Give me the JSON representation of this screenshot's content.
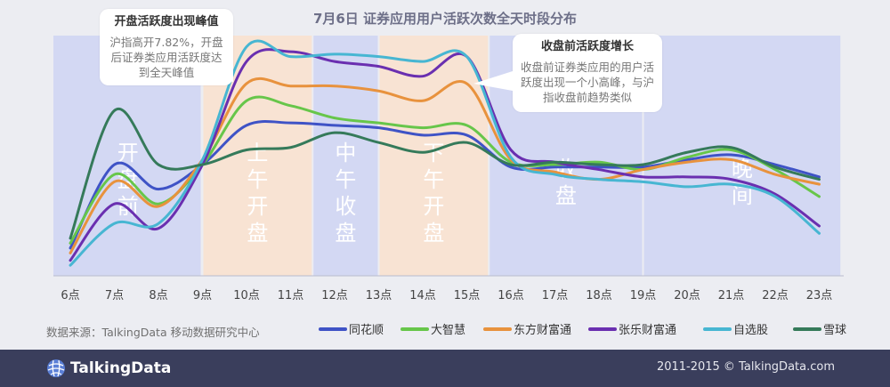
{
  "chart_data": {
    "type": "line",
    "title": "7月6日 证券应用用户活跃次数全天时段分布",
    "categories": [
      "6点",
      "7点",
      "8点",
      "9点",
      "10点",
      "11点",
      "12点",
      "13点",
      "14点",
      "15点",
      "16点",
      "17点",
      "18点",
      "19点",
      "20点",
      "21点",
      "22点",
      "23点"
    ],
    "ylim": [
      0,
      100
    ],
    "grid": false,
    "legend_position": "bottom",
    "series": [
      {
        "name": "同花顺",
        "color": "#3f53c6",
        "values": [
          12,
          46,
          36,
          46,
          62,
          63,
          62,
          61,
          58,
          58,
          45,
          45,
          45,
          45,
          48,
          50,
          46,
          41
        ]
      },
      {
        "name": "大智慧",
        "color": "#67c64a",
        "values": [
          14,
          42,
          30,
          46,
          72,
          70,
          65,
          63,
          61,
          62,
          47,
          46,
          47,
          44,
          49,
          52,
          44,
          33
        ]
      },
      {
        "name": "东方财富通",
        "color": "#e8923d",
        "values": [
          10,
          39,
          29,
          48,
          79,
          78,
          78,
          76,
          72,
          79,
          48,
          43,
          40,
          44,
          47,
          48,
          42,
          38
        ]
      },
      {
        "name": "张乐财富通",
        "color": "#6a2fb0",
        "values": [
          7,
          30,
          20,
          46,
          88,
          92,
          88,
          86,
          82,
          90,
          52,
          47,
          44,
          41,
          41,
          40,
          34,
          21
        ]
      },
      {
        "name": "自选股",
        "color": "#47b6d2",
        "values": [
          5,
          22,
          22,
          48,
          94,
          90,
          91,
          90,
          88,
          90,
          49,
          42,
          40,
          39,
          37,
          38,
          33,
          18
        ]
      },
      {
        "name": "雪球",
        "color": "#357a5a",
        "values": [
          16,
          68,
          46,
          46,
          52,
          53,
          59,
          55,
          51,
          55,
          46,
          47,
          46,
          46,
          51,
          53,
          45,
          40
        ]
      }
    ],
    "periods": [
      {
        "label": "开盘前",
        "type": "blue",
        "from": "6点",
        "to": "9点",
        "chars": [
          "开",
          "盘",
          "前"
        ]
      },
      {
        "label": "上午开盘",
        "type": "orange",
        "from": "9点",
        "to": "11.5",
        "chars": [
          "上",
          "午",
          "开",
          "盘"
        ]
      },
      {
        "label": "中午收盘",
        "type": "blue",
        "from": "11.5",
        "to": "13点",
        "chars": [
          "中",
          "午",
          "收",
          "盘"
        ]
      },
      {
        "label": "下午开盘",
        "type": "orange",
        "from": "13点",
        "to": "15.5",
        "chars": [
          "下",
          "午",
          "开",
          "盘"
        ]
      },
      {
        "label": "收盘",
        "type": "blue",
        "from": "15.5",
        "to": "19点",
        "chars": [
          "收",
          "盘"
        ]
      },
      {
        "label": "晚间",
        "type": "blue",
        "from": "19点",
        "to": "23.5",
        "chars": [
          "晚",
          "间"
        ]
      }
    ]
  },
  "callouts": {
    "left": {
      "title": "开盘活跃度出现峰值",
      "body": "沪指高开7.82%，开盘后证券类应用活跃度达到全天峰值"
    },
    "right": {
      "title": "收盘前活跃度增长",
      "body": "收盘前证券类应用的用户活跃度出现一个小高峰，与沪指收盘前趋势类似"
    }
  },
  "source": "数据来源：TalkingData 移动数据研究中心",
  "footer": {
    "logo_text": "TalkingData",
    "copyright": "2011-2015 © TalkingData.com"
  },
  "colors": {
    "band_blue": "#d3d8f3",
    "band_orange": "#f8e3d3",
    "footer_bg": "#3a3e5c"
  }
}
